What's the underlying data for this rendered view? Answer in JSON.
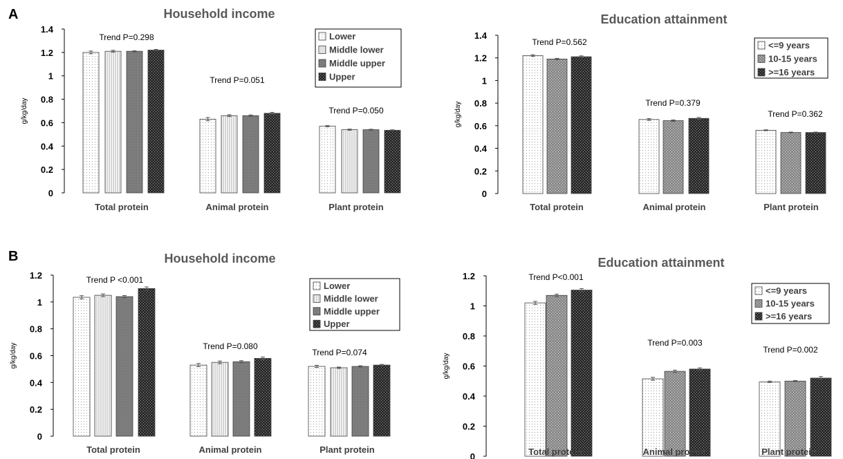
{
  "panels": [
    {
      "letter": "A"
    },
    {
      "letter": "B"
    }
  ],
  "chart_data": [
    {
      "type": "bar",
      "panel": "A",
      "title": "Household income",
      "ylabel": "g/kg/day",
      "ylim": [
        0,
        1.4
      ],
      "yticks": [
        "0",
        "0.2",
        "0.4",
        "0.6",
        "0.8",
        "1",
        "1.2",
        "1.4"
      ],
      "ytick_values": [
        0,
        0.2,
        0.4,
        0.6,
        0.8,
        1.0,
        1.2,
        1.4
      ],
      "categories": [
        "Total protein",
        "Animal protein",
        "Plant protein"
      ],
      "trend_labels": [
        "Trend P=0.298",
        "Trend P=0.051",
        "Trend P=0.050"
      ],
      "legend_position": "top-right",
      "series": [
        {
          "name": "Lower",
          "pattern": "dots-sparse",
          "values": [
            1.2,
            0.63,
            0.57
          ],
          "errors": [
            0.012,
            0.014,
            0.005
          ]
        },
        {
          "name": "Middle lower",
          "pattern": "stripes-light",
          "values": [
            1.21,
            0.66,
            0.54
          ],
          "errors": [
            0.008,
            0.008,
            0.005
          ]
        },
        {
          "name": "Middle upper",
          "pattern": "gray-medium",
          "values": [
            1.21,
            0.66,
            0.54
          ],
          "errors": [
            0.005,
            0.006,
            0.004
          ]
        },
        {
          "name": "Upper",
          "pattern": "dark-dots",
          "values": [
            1.22,
            0.68,
            0.535
          ],
          "errors": [
            0.006,
            0.008,
            0.004
          ]
        }
      ]
    },
    {
      "type": "bar",
      "panel": "A",
      "title": "Education attainment",
      "ylabel": "g/kg/day",
      "ylim": [
        0,
        1.4
      ],
      "yticks": [
        "0",
        "0.2",
        "0.4",
        "0.6",
        "0.8",
        "1",
        "1.2",
        "1.4"
      ],
      "ytick_values": [
        0,
        0.2,
        0.4,
        0.6,
        0.8,
        1.0,
        1.2,
        1.4
      ],
      "categories": [
        "Total protein",
        "Animal protein",
        "Plant protein"
      ],
      "trend_labels": [
        "Trend P=0.562",
        "Trend P=0.379",
        "Trend P=0.362"
      ],
      "legend_position": "top-right",
      "series": [
        {
          "name": "<=9 years",
          "pattern": "dots-sparse",
          "values": [
            1.22,
            0.655,
            0.56
          ],
          "errors": [
            0.008,
            0.008,
            0.004
          ]
        },
        {
          "name": "10-15 years",
          "pattern": "gray-dots",
          "values": [
            1.19,
            0.645,
            0.54
          ],
          "errors": [
            0.006,
            0.006,
            0.004
          ]
        },
        {
          "name": ">=16 years",
          "pattern": "dark-dots",
          "values": [
            1.21,
            0.665,
            0.54
          ],
          "errors": [
            0.008,
            0.008,
            0.004
          ]
        }
      ]
    },
    {
      "type": "bar",
      "panel": "B",
      "title": "Household income",
      "ylabel": "g/kg/day",
      "ylim": [
        0,
        1.2
      ],
      "yticks": [
        "0",
        "0.2",
        "0.4",
        "0.6",
        "0.8",
        "1",
        "1.2"
      ],
      "ytick_values": [
        0,
        0.2,
        0.4,
        0.6,
        0.8,
        1.0,
        1.2
      ],
      "categories": [
        "Total protein",
        "Animal protein",
        "Plant protein"
      ],
      "trend_labels": [
        "Trend P <0.001",
        "Trend P=0.080",
        "Trend P=0.074"
      ],
      "legend_position": "top-right",
      "series": [
        {
          "name": "Lower",
          "pattern": "dots-sparse",
          "values": [
            1.035,
            0.53,
            0.52
          ],
          "errors": [
            0.012,
            0.012,
            0.008
          ]
        },
        {
          "name": "Middle lower",
          "pattern": "stripes-light",
          "values": [
            1.05,
            0.55,
            0.51
          ],
          "errors": [
            0.01,
            0.01,
            0.005
          ]
        },
        {
          "name": "Middle upper",
          "pattern": "gray-medium",
          "values": [
            1.04,
            0.555,
            0.52
          ],
          "errors": [
            0.008,
            0.008,
            0.005
          ]
        },
        {
          "name": "Upper",
          "pattern": "dark-dots",
          "values": [
            1.1,
            0.58,
            0.53
          ],
          "errors": [
            0.012,
            0.01,
            0.005
          ]
        }
      ]
    },
    {
      "type": "bar",
      "panel": "B",
      "title": "Education attainment",
      "ylabel": "g/kg/day",
      "ylim": [
        0,
        1.2
      ],
      "yticks": [
        "0",
        "0.2",
        "0.4",
        "0.6",
        "0.8",
        "1",
        "1.2"
      ],
      "ytick_values": [
        0,
        0.2,
        0.4,
        0.6,
        0.8,
        1.0,
        1.2
      ],
      "categories": [
        "Total protein",
        "Animal protein",
        "Plant protein"
      ],
      "trend_labels": [
        "Trend P<0.001",
        "Trend P=0.003",
        "Trend P=0.002"
      ],
      "legend_position": "top-right",
      "series": [
        {
          "name": "<=9 years",
          "pattern": "dots-sparse",
          "values": [
            1.02,
            0.515,
            0.495
          ],
          "errors": [
            0.01,
            0.01,
            0.005
          ]
        },
        {
          "name": "10-15 years",
          "pattern": "gray-dots",
          "values": [
            1.07,
            0.565,
            0.5
          ],
          "errors": [
            0.008,
            0.008,
            0.004
          ]
        },
        {
          "name": ">=16 years",
          "pattern": "dark-dots",
          "values": [
            1.105,
            0.58,
            0.52
          ],
          "errors": [
            0.01,
            0.008,
            0.01
          ]
        }
      ]
    }
  ]
}
